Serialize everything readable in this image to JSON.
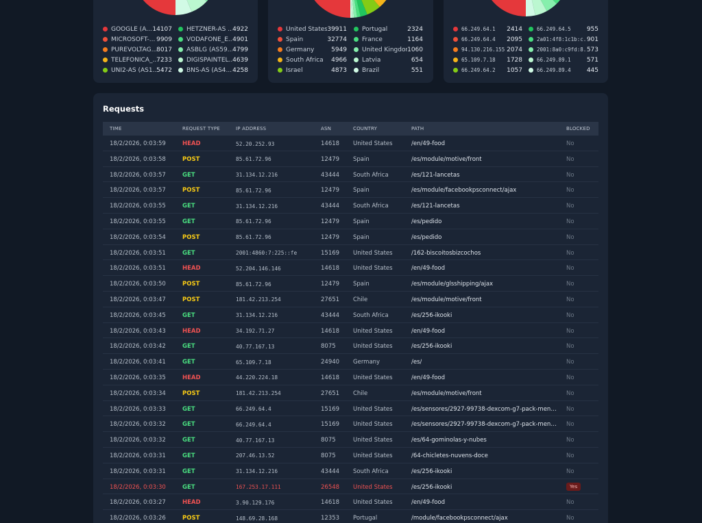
{
  "colors": {
    "red": "#e5383b",
    "orange": "#f57c1f",
    "yellow": "#f4b41a",
    "lime": "#84cc16",
    "green": "#22c55e",
    "lightgreen": "#86efac",
    "mint": "#d1fae5",
    "head": "#f05252",
    "post": "#facc15",
    "get": "#4ade80"
  },
  "asn_stats": {
    "left": [
      {
        "label": "GOOGLE (A...",
        "value": "14107",
        "color": "#e5383b"
      },
      {
        "label": "MICROSOFT-...",
        "value": "9909",
        "color": "#f0503a"
      },
      {
        "label": "PUREVOLTAG...",
        "value": "8017",
        "color": "#f57c1f"
      },
      {
        "label": "TELEFONICA_...",
        "value": "7233",
        "color": "#f4b41a"
      },
      {
        "label": "UNI2-AS (AS1...",
        "value": "5472",
        "color": "#84cc16"
      }
    ],
    "right": [
      {
        "label": "HETZNER-AS ...",
        "value": "4922",
        "color": "#22c55e"
      },
      {
        "label": "VODAFONE_E...",
        "value": "4901",
        "color": "#4ade80"
      },
      {
        "label": "ASBLG (AS59...",
        "value": "4799",
        "color": "#86efac"
      },
      {
        "label": "DIGISPAINTEL...",
        "value": "4639",
        "color": "#bbf7d0"
      },
      {
        "label": "BNS-AS (AS4...",
        "value": "4258",
        "color": "#d1fae5"
      }
    ]
  },
  "country_stats": {
    "left": [
      {
        "label": "United States",
        "value": "39911",
        "color": "#e5383b"
      },
      {
        "label": "Spain",
        "value": "32774",
        "color": "#f0503a"
      },
      {
        "label": "Germany",
        "value": "5949",
        "color": "#f57c1f"
      },
      {
        "label": "South Africa",
        "value": "4966",
        "color": "#f4b41a"
      },
      {
        "label": "Israel",
        "value": "4873",
        "color": "#84cc16"
      }
    ],
    "right": [
      {
        "label": "Portugal",
        "value": "2324",
        "color": "#22c55e"
      },
      {
        "label": "France",
        "value": "1164",
        "color": "#4ade80"
      },
      {
        "label": "United Kingdom",
        "value": "1060",
        "color": "#86efac"
      },
      {
        "label": "Latvia",
        "value": "654",
        "color": "#bbf7d0"
      },
      {
        "label": "Brazil",
        "value": "551",
        "color": "#d1fae5"
      }
    ]
  },
  "ip_stats": {
    "left": [
      {
        "label": "66.249.64.1",
        "value": "2414",
        "color": "#e5383b"
      },
      {
        "label": "66.249.64.4",
        "value": "2095",
        "color": "#f0503a"
      },
      {
        "label": "94.130.216.155",
        "value": "2074",
        "color": "#f57c1f"
      },
      {
        "label": "65.109.7.18",
        "value": "1728",
        "color": "#f4b41a"
      },
      {
        "label": "66.249.64.2",
        "value": "1057",
        "color": "#84cc16"
      }
    ],
    "right": [
      {
        "label": "66.249.64.5",
        "value": "955",
        "color": "#22c55e"
      },
      {
        "label": "2a01:4f8:1c1b:c...",
        "value": "901",
        "color": "#4ade80"
      },
      {
        "label": "2001:8a0:c9fd:8...",
        "value": "573",
        "color": "#86efac"
      },
      {
        "label": "66.249.89.1",
        "value": "571",
        "color": "#bbf7d0"
      },
      {
        "label": "66.249.89.4",
        "value": "445",
        "color": "#d1fae5"
      }
    ]
  },
  "requests": {
    "title": "Requests",
    "headers": {
      "time": "TIME",
      "type": "REQUEST TYPE",
      "ip": "IP ADDRESS",
      "asn": "ASN",
      "country": "COUNTRY",
      "path": "PATH",
      "blocked": "BLOCKED"
    },
    "rows": [
      {
        "time": "18/2/2026, 0:03:59",
        "type": "HEAD",
        "ip": "52.20.252.93",
        "asn": "14618",
        "country": "United States",
        "path": "/en/49-food",
        "blocked": "No"
      },
      {
        "time": "18/2/2026, 0:03:58",
        "type": "POST",
        "ip": "85.61.72.96",
        "asn": "12479",
        "country": "Spain",
        "path": "/es/module/motive/front",
        "blocked": "No"
      },
      {
        "time": "18/2/2026, 0:03:57",
        "type": "GET",
        "ip": "31.134.12.216",
        "asn": "43444",
        "country": "South Africa",
        "path": "/es/121-lancetas",
        "blocked": "No"
      },
      {
        "time": "18/2/2026, 0:03:57",
        "type": "POST",
        "ip": "85.61.72.96",
        "asn": "12479",
        "country": "Spain",
        "path": "/es/module/facebookpsconnect/ajax",
        "blocked": "No"
      },
      {
        "time": "18/2/2026, 0:03:55",
        "type": "GET",
        "ip": "31.134.12.216",
        "asn": "43444",
        "country": "South Africa",
        "path": "/es/121-lancetas",
        "blocked": "No"
      },
      {
        "time": "18/2/2026, 0:03:55",
        "type": "GET",
        "ip": "85.61.72.96",
        "asn": "12479",
        "country": "Spain",
        "path": "/es/pedido",
        "blocked": "No"
      },
      {
        "time": "18/2/2026, 0:03:54",
        "type": "POST",
        "ip": "85.61.72.96",
        "asn": "12479",
        "country": "Spain",
        "path": "/es/pedido",
        "blocked": "No"
      },
      {
        "time": "18/2/2026, 0:03:51",
        "type": "GET",
        "ip": "2001:4860:7:225::fe",
        "asn": "15169",
        "country": "United States",
        "path": "/162-biscoitosbizcochos",
        "blocked": "No"
      },
      {
        "time": "18/2/2026, 0:03:51",
        "type": "HEAD",
        "ip": "52.204.146.146",
        "asn": "14618",
        "country": "United States",
        "path": "/en/49-food",
        "blocked": "No"
      },
      {
        "time": "18/2/2026, 0:03:50",
        "type": "POST",
        "ip": "85.61.72.96",
        "asn": "12479",
        "country": "Spain",
        "path": "/es/module/glsshipping/ajax",
        "blocked": "No"
      },
      {
        "time": "18/2/2026, 0:03:47",
        "type": "POST",
        "ip": "181.42.213.254",
        "asn": "27651",
        "country": "Chile",
        "path": "/es/module/motive/front",
        "blocked": "No"
      },
      {
        "time": "18/2/2026, 0:03:45",
        "type": "GET",
        "ip": "31.134.12.216",
        "asn": "43444",
        "country": "South Africa",
        "path": "/es/256-ikooki",
        "blocked": "No"
      },
      {
        "time": "18/2/2026, 0:03:43",
        "type": "HEAD",
        "ip": "34.192.71.27",
        "asn": "14618",
        "country": "United States",
        "path": "/en/49-food",
        "blocked": "No"
      },
      {
        "time": "18/2/2026, 0:03:42",
        "type": "GET",
        "ip": "40.77.167.13",
        "asn": "8075",
        "country": "United States",
        "path": "/es/256-ikooki",
        "blocked": "No"
      },
      {
        "time": "18/2/2026, 0:03:41",
        "type": "GET",
        "ip": "65.109.7.18",
        "asn": "24940",
        "country": "Germany",
        "path": "/es/",
        "blocked": "No"
      },
      {
        "time": "18/2/2026, 0:03:35",
        "type": "HEAD",
        "ip": "44.220.224.18",
        "asn": "14618",
        "country": "United States",
        "path": "/en/49-food",
        "blocked": "No"
      },
      {
        "time": "18/2/2026, 0:03:34",
        "type": "POST",
        "ip": "181.42.213.254",
        "asn": "27651",
        "country": "Chile",
        "path": "/es/module/motive/front",
        "blocked": "No"
      },
      {
        "time": "18/2/2026, 0:03:33",
        "type": "GET",
        "ip": "66.249.64.4",
        "asn": "15169",
        "country": "United States",
        "path": "/es/sensores/2927-99738-dexcom-g7-pack-mensua...",
        "blocked": "No"
      },
      {
        "time": "18/2/2026, 0:03:32",
        "type": "GET",
        "ip": "66.249.64.4",
        "asn": "15169",
        "country": "United States",
        "path": "/es/sensores/2927-99738-dexcom-g7-pack-mensua...",
        "blocked": "No"
      },
      {
        "time": "18/2/2026, 0:03:32",
        "type": "GET",
        "ip": "40.77.167.13",
        "asn": "8075",
        "country": "United States",
        "path": "/es/64-gominolas-y-nubes",
        "blocked": "No"
      },
      {
        "time": "18/2/2026, 0:03:31",
        "type": "GET",
        "ip": "207.46.13.52",
        "asn": "8075",
        "country": "United States",
        "path": "/64-chicletes-nuvens-doce",
        "blocked": "No"
      },
      {
        "time": "18/2/2026, 0:03:31",
        "type": "GET",
        "ip": "31.134.12.216",
        "asn": "43444",
        "country": "South Africa",
        "path": "/es/256-ikooki",
        "blocked": "No"
      },
      {
        "time": "18/2/2026, 0:03:30",
        "type": "GET",
        "ip": "167.253.17.111",
        "asn": "26548",
        "country": "United States",
        "path": "/es/256-ikooki",
        "blocked": "Yes",
        "is_blocked": true
      },
      {
        "time": "18/2/2026, 0:03:27",
        "type": "HEAD",
        "ip": "3.90.129.176",
        "asn": "14618",
        "country": "United States",
        "path": "/en/49-food",
        "blocked": "No"
      },
      {
        "time": "18/2/2026, 0:03:26",
        "type": "POST",
        "ip": "148.69.28.168",
        "asn": "12353",
        "country": "Portugal",
        "path": "/module/facebookpsconnect/ajax",
        "blocked": "No"
      }
    ]
  }
}
